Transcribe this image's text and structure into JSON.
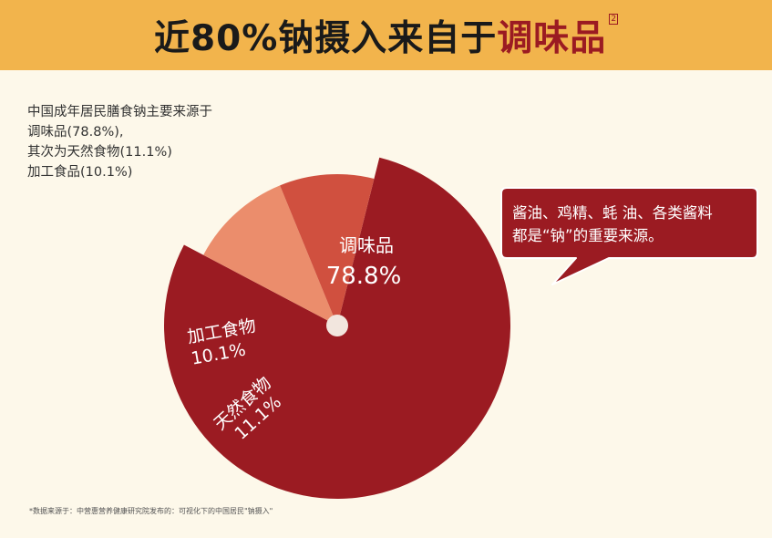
{
  "header": {
    "title_main": "近80%钠摄入来自于",
    "title_highlight": "调味品",
    "ref": "2"
  },
  "description": {
    "lines": [
      "中国成年居民膳食钠主要来源于",
      "调味品(78.8%),",
      "其次为天然食物(11.1%)",
      "加工食品(10.1%)"
    ]
  },
  "callout": {
    "lines": [
      "酱油、鸡精、蚝 油、各类酱料",
      "都是“钠”的重要来源。"
    ]
  },
  "footnote": "*数据来源于：中营惠营养健康研究院发布的：可视化下的中国居民\"钠摄入\"",
  "colors": {
    "banner": "#f2b44c",
    "accent": "#9b1b22",
    "slice_condiment": "#9b1b22",
    "slice_processed": "#d0503f",
    "slice_natural": "#eb8d6c",
    "center_dot": "#f2e6de",
    "background": "#fdf8ea"
  },
  "chart_data": {
    "type": "pie",
    "slices": [
      {
        "label": "调味品",
        "value": 78.8,
        "display": "78.8%",
        "color": "#9b1b22"
      },
      {
        "label": "天然食物",
        "value": 11.1,
        "display": "11.1%",
        "color": "#eb8d6c"
      },
      {
        "label": "加工食物",
        "value": 10.1,
        "display": "10.1%",
        "color": "#d0503f"
      }
    ]
  }
}
